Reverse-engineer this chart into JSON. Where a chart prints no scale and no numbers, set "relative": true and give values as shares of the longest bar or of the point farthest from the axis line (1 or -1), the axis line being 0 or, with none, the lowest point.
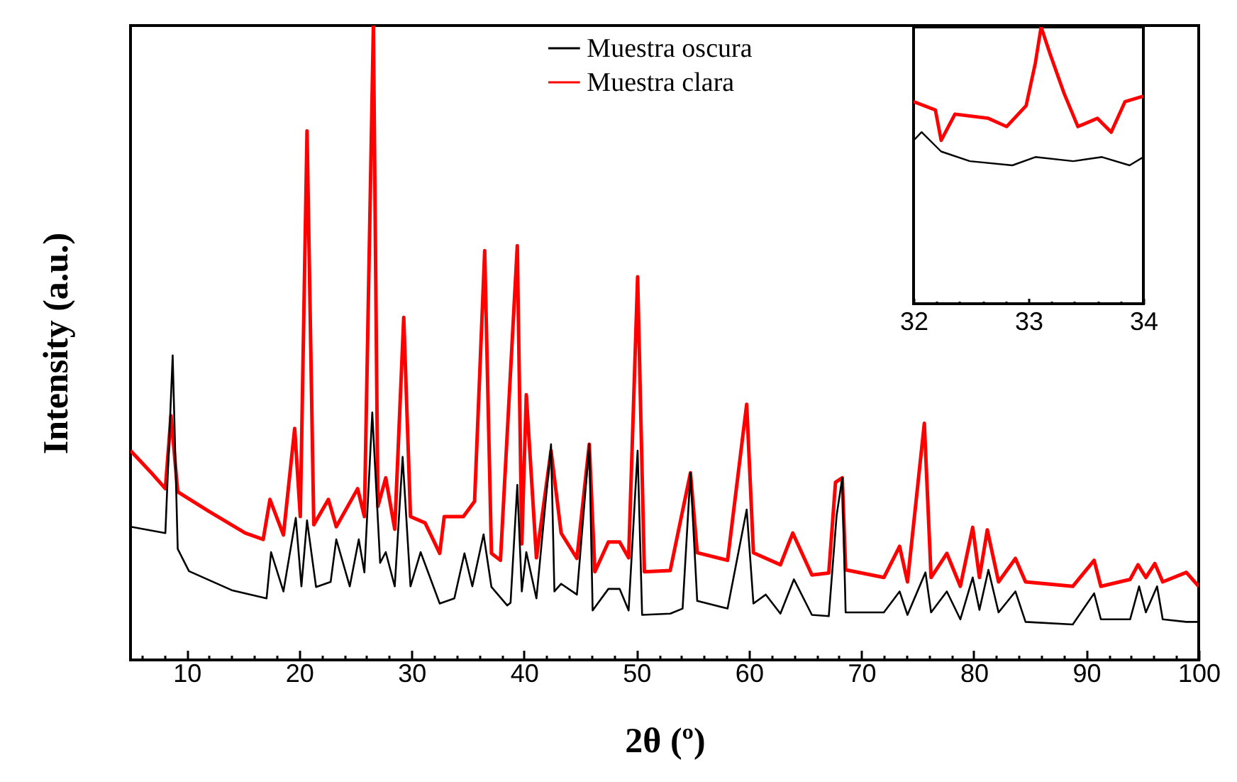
{
  "chart_data": [
    {
      "type": "line",
      "relative": true,
      "xlabel": "2θ (º)",
      "ylabel": "Intensity (a.u.)",
      "legend": "top",
      "xlim": [
        5,
        100
      ],
      "xticks": [
        {
          "value": 6,
          "label": null
        },
        {
          "value": 8,
          "label": null
        },
        10,
        {
          "value": 12,
          "label": null
        },
        {
          "value": 14,
          "label": null
        },
        {
          "value": 16,
          "label": null
        },
        {
          "value": 18,
          "label": null
        },
        20,
        {
          "value": 22,
          "label": null
        },
        {
          "value": 24,
          "label": null
        },
        {
          "value": 26,
          "label": null
        },
        {
          "value": 28,
          "label": null
        },
        30,
        {
          "value": 32,
          "label": null
        },
        {
          "value": 34,
          "label": null
        },
        {
          "value": 36,
          "label": null
        },
        {
          "value": 38,
          "label": null
        },
        40,
        {
          "value": 42,
          "label": null
        },
        {
          "value": 44,
          "label": null
        },
        {
          "value": 46,
          "label": null
        },
        {
          "value": 48,
          "label": null
        },
        50,
        {
          "value": 52,
          "label": null
        },
        {
          "value": 54,
          "label": null
        },
        {
          "value": 56,
          "label": null
        },
        {
          "value": 58,
          "label": null
        },
        60,
        {
          "value": 62,
          "label": null
        },
        {
          "value": 64,
          "label": null
        },
        {
          "value": 66,
          "label": null
        },
        {
          "value": 68,
          "label": null
        },
        70,
        {
          "value": 72,
          "label": null
        },
        {
          "value": 74,
          "label": null
        },
        {
          "value": 76,
          "label": null
        },
        {
          "value": 78,
          "label": null
        },
        80,
        {
          "value": 82,
          "label": null
        },
        {
          "value": 84,
          "label": null
        },
        {
          "value": 86,
          "label": null
        },
        {
          "value": 88,
          "label": null
        },
        90,
        {
          "value": 92,
          "label": null
        },
        {
          "value": 94,
          "label": null
        },
        {
          "value": 96,
          "label": null
        },
        {
          "value": 98,
          "label": null
        },
        100
      ],
      "series": [
        {
          "name": "Muestra oscura",
          "color": "#000000",
          "x": [
            5.0,
            8.1,
            8.75,
            9.2,
            10.2,
            14.0,
            17.1,
            17.5,
            18.6,
            19.7,
            20.2,
            20.7,
            21.5,
            22.8,
            23.3,
            24.5,
            25.3,
            25.8,
            26.5,
            27.2,
            27.7,
            28.5,
            29.2,
            29.9,
            30.8,
            32.5,
            33.8,
            34.7,
            35.4,
            36.4,
            37.1,
            38.5,
            38.8,
            39.4,
            39.8,
            40.2,
            41.1,
            42.4,
            42.7,
            43.3,
            44.7,
            45.8,
            46.1,
            47.5,
            48.5,
            49.3,
            50.1,
            50.5,
            53.0,
            54.1,
            54.8,
            55.4,
            58.1,
            59.8,
            60.4,
            61.5,
            62.8,
            64.0,
            65.6,
            67.1,
            67.8,
            68.3,
            68.6,
            72.0,
            73.4,
            74.1,
            75.7,
            76.2,
            77.6,
            78.8,
            79.9,
            80.5,
            81.3,
            82.2,
            83.7,
            84.6,
            88.8,
            90.7,
            91.3,
            93.9,
            94.7,
            95.3,
            96.3,
            96.8,
            98.9,
            100
          ],
          "values": [
            0.21,
            0.2,
            0.48,
            0.175,
            0.14,
            0.11,
            0.097,
            0.17,
            0.108,
            0.224,
            0.116,
            0.22,
            0.115,
            0.123,
            0.19,
            0.116,
            0.19,
            0.138,
            0.39,
            0.153,
            0.17,
            0.116,
            0.32,
            0.116,
            0.17,
            0.089,
            0.097,
            0.168,
            0.116,
            0.198,
            0.115,
            0.086,
            0.09,
            0.276,
            0.108,
            0.17,
            0.097,
            0.34,
            0.108,
            0.12,
            0.103,
            0.34,
            0.078,
            0.112,
            0.112,
            0.078,
            0.33,
            0.071,
            0.073,
            0.081,
            0.295,
            0.093,
            0.081,
            0.237,
            0.089,
            0.103,
            0.073,
            0.127,
            0.071,
            0.069,
            0.228,
            0.287,
            0.075,
            0.075,
            0.108,
            0.071,
            0.138,
            0.075,
            0.108,
            0.064,
            0.13,
            0.079,
            0.142,
            0.075,
            0.108,
            0.06,
            0.056,
            0.105,
            0.064,
            0.064,
            0.116,
            0.075,
            0.116,
            0.064,
            0.06,
            0.06
          ]
        },
        {
          "name": "Muestra clara",
          "color": "#ff0000",
          "x": [
            5.0,
            6.85,
            8.1,
            8.6,
            9.2,
            11.9,
            15.2,
            16.8,
            17.4,
            18.6,
            19.6,
            20.1,
            20.7,
            21.3,
            22.6,
            23.3,
            25.2,
            25.8,
            26.6,
            27.0,
            27.7,
            28.5,
            29.3,
            29.9,
            31.2,
            32.5,
            32.9,
            34.6,
            35.6,
            36.5,
            37.1,
            37.9,
            39.4,
            39.8,
            40.2,
            41.1,
            42.4,
            43.3,
            44.7,
            45.8,
            46.3,
            47.5,
            48.5,
            49.3,
            50.1,
            50.7,
            53.0,
            54.8,
            55.4,
            58.1,
            59.8,
            60.4,
            62.8,
            63.9,
            65.6,
            67.1,
            67.7,
            68.3,
            68.6,
            72.0,
            73.4,
            74.1,
            75.6,
            76.2,
            77.6,
            78.8,
            79.9,
            80.5,
            81.2,
            82.2,
            83.7,
            84.6,
            88.8,
            90.7,
            91.3,
            93.9,
            94.6,
            95.3,
            96.1,
            96.8,
            98.9,
            100
          ],
          "values": [
            0.33,
            0.295,
            0.27,
            0.385,
            0.265,
            0.235,
            0.2,
            0.19,
            0.253,
            0.197,
            0.365,
            0.226,
            0.834,
            0.213,
            0.253,
            0.21,
            0.27,
            0.226,
            1,
            0.242,
            0.287,
            0.206,
            0.54,
            0.226,
            0.216,
            0.168,
            0.226,
            0.226,
            0.25,
            0.645,
            0.168,
            0.157,
            0.653,
            0.183,
            0.418,
            0.161,
            0.33,
            0.2,
            0.16,
            0.34,
            0.139,
            0.186,
            0.186,
            0.161,
            0.604,
            0.139,
            0.141,
            0.295,
            0.169,
            0.157,
            0.403,
            0.169,
            0.15,
            0.2,
            0.134,
            0.137,
            0.28,
            0.287,
            0.142,
            0.13,
            0.179,
            0.123,
            0.373,
            0.13,
            0.168,
            0.116,
            0.209,
            0.13,
            0.205,
            0.123,
            0.16,
            0.123,
            0.116,
            0.157,
            0.116,
            0.127,
            0.15,
            0.13,
            0.152,
            0.123,
            0.138,
            0.116
          ]
        }
      ]
    },
    {
      "type": "line",
      "relative": true,
      "xlim": [
        32,
        34
      ],
      "xticks": [
        32,
        {
          "value": 32.2,
          "label": null
        },
        {
          "value": 32.4,
          "label": null
        },
        {
          "value": 32.6,
          "label": null
        },
        {
          "value": 32.8,
          "label": null
        },
        33,
        {
          "value": 33.2,
          "label": null
        },
        {
          "value": 33.4,
          "label": null
        },
        {
          "value": 33.6,
          "label": null
        },
        {
          "value": 33.8,
          "label": null
        },
        34
      ],
      "series": [
        {
          "color": "#000000",
          "x": [
            32.0,
            32.07,
            32.24,
            32.49,
            32.86,
            33.06,
            33.39,
            33.64,
            33.88,
            34.0
          ],
          "values": [
            0.59,
            0.62,
            0.55,
            0.515,
            0.5,
            0.53,
            0.515,
            0.53,
            0.5,
            0.53
          ]
        },
        {
          "color": "#ff0000",
          "x": [
            32.0,
            32.19,
            32.24,
            32.36,
            32.65,
            32.81,
            32.98,
            33.06,
            33.11,
            33.19,
            33.31,
            33.43,
            33.6,
            33.72,
            33.84,
            34.0
          ],
          "values": [
            0.73,
            0.7,
            0.59,
            0.685,
            0.67,
            0.64,
            0.716,
            0.87,
            1,
            0.9,
            0.76,
            0.64,
            0.67,
            0.62,
            0.73,
            0.75
          ]
        }
      ]
    }
  ]
}
